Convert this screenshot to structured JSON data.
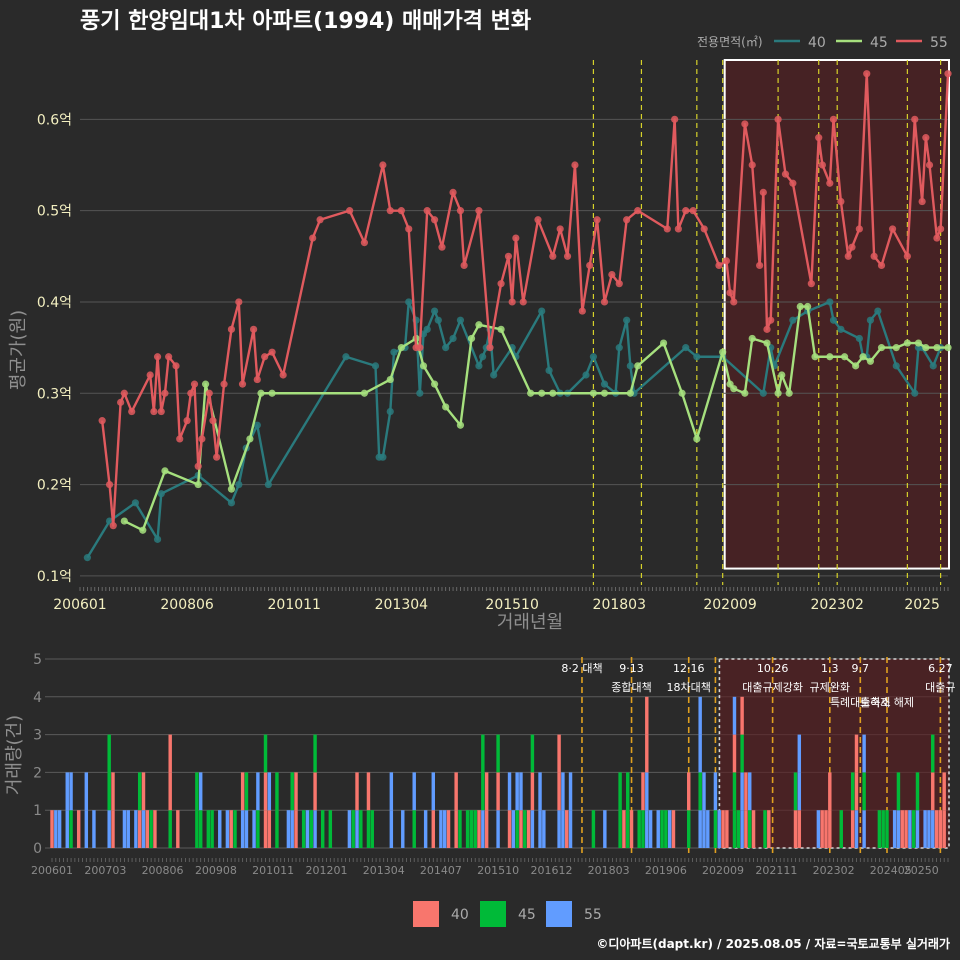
{
  "chart_data": [
    {
      "type": "line",
      "title": "풍기 한양임대1차 아파트(1994) 매매가격 변화",
      "xlabel": "거래년월",
      "ylabel": "평균가(원)",
      "x_ticks": [
        "200601",
        "200806",
        "201011",
        "201304",
        "201510",
        "201803",
        "202009",
        "202302",
        "2025"
      ],
      "y_ticks": [
        "0.1억",
        "0.2억",
        "0.3억",
        "0.4억",
        "0.5억",
        "0.6억"
      ],
      "ylim": [
        0.09,
        0.665
      ],
      "xlim": [
        "2006-01",
        "2025-08"
      ],
      "grid": true,
      "legend_title": "전용면적(㎡)",
      "legend_position": "top-right",
      "series": [
        {
          "name": "40",
          "color": "#2a7a7d",
          "x": [
            "2006-03",
            "2006-09",
            "2007-04",
            "2007-10",
            "2007-11",
            "2008-09",
            "2009-06",
            "2009-08",
            "2009-10",
            "2010-01",
            "2010-04",
            "2012-01",
            "2012-09",
            "2012-10",
            "2012-11",
            "2013-01",
            "2013-02",
            "2013-05",
            "2013-06",
            "2013-08",
            "2013-09",
            "2013-10",
            "2013-11",
            "2014-01",
            "2014-02",
            "2014-04",
            "2014-06",
            "2014-08",
            "2015-01",
            "2015-02",
            "2015-03",
            "2015-04",
            "2015-05",
            "2015-10",
            "2015-11",
            "2016-06",
            "2016-08",
            "2016-11",
            "2017-01",
            "2017-06",
            "2017-08",
            "2017-11",
            "2018-02",
            "2018-03",
            "2018-05",
            "2018-06",
            "2018-07",
            "2019-09",
            "2019-12",
            "2020-07",
            "2021-06",
            "2021-08",
            "2021-09",
            "2022-02",
            "2022-06",
            "2022-12",
            "2023-01",
            "2023-03",
            "2023-08",
            "2023-09",
            "2023-10",
            "2023-11",
            "2024-01",
            "2024-06",
            "2024-11",
            "2024-12",
            "2025-01",
            "2025-04",
            "2025-06"
          ],
          "y": [
            0.12,
            0.16,
            0.18,
            0.14,
            0.19,
            0.21,
            0.18,
            0.2,
            0.24,
            0.265,
            0.2,
            0.34,
            0.33,
            0.23,
            0.23,
            0.28,
            0.345,
            0.35,
            0.4,
            0.38,
            0.3,
            0.365,
            0.37,
            0.39,
            0.38,
            0.35,
            0.36,
            0.38,
            0.33,
            0.34,
            0.35,
            0.37,
            0.32,
            0.35,
            0.34,
            0.39,
            0.325,
            0.3,
            0.3,
            0.32,
            0.34,
            0.31,
            0.3,
            0.35,
            0.38,
            0.33,
            0.3,
            0.35,
            0.34,
            0.34,
            0.3,
            0.35,
            0.33,
            0.38,
            0.39,
            0.4,
            0.38,
            0.37,
            0.36,
            0.34,
            0.34,
            0.38,
            0.39,
            0.33,
            0.3,
            0.35,
            0.35,
            0.33,
            0.35
          ]
        },
        {
          "name": "45",
          "color": "#a6e07e",
          "x": [
            "2007-01",
            "2007-06",
            "2007-12",
            "2008-09",
            "2008-11",
            "2009-06",
            "2009-11",
            "2010-02",
            "2010-05",
            "2012-06",
            "2013-01",
            "2013-04",
            "2013-08",
            "2013-10",
            "2014-01",
            "2014-04",
            "2014-08",
            "2014-11",
            "2015-01",
            "2015-07",
            "2016-03",
            "2016-06",
            "2016-09",
            "2017-08",
            "2017-11",
            "2018-06",
            "2018-08",
            "2019-03",
            "2019-08",
            "2019-12",
            "2020-07",
            "2020-09",
            "2020-10",
            "2021-01",
            "2021-03",
            "2021-07",
            "2021-10",
            "2021-11",
            "2022-01",
            "2022-04",
            "2022-06",
            "2022-08",
            "2022-12",
            "2023-04",
            "2023-07",
            "2023-09",
            "2023-11",
            "2024-02",
            "2024-06",
            "2024-09",
            "2024-12",
            "2025-02",
            "2025-05",
            "2025-08"
          ],
          "y": [
            0.16,
            0.15,
            0.215,
            0.2,
            0.31,
            0.195,
            0.25,
            0.3,
            0.3,
            0.3,
            0.315,
            0.35,
            0.36,
            0.33,
            0.31,
            0.285,
            0.265,
            0.36,
            0.375,
            0.37,
            0.3,
            0.3,
            0.3,
            0.3,
            0.3,
            0.3,
            0.33,
            0.355,
            0.3,
            0.25,
            0.345,
            0.31,
            0.305,
            0.3,
            0.36,
            0.355,
            0.3,
            0.32,
            0.3,
            0.395,
            0.395,
            0.34,
            0.34,
            0.34,
            0.33,
            0.34,
            0.335,
            0.35,
            0.35,
            0.355,
            0.355,
            0.35,
            0.35,
            0.35
          ]
        },
        {
          "name": "55",
          "color": "#e05a5e",
          "x": [
            "2006-07",
            "2006-09",
            "2006-10",
            "2006-12",
            "2007-01",
            "2007-03",
            "2007-08",
            "2007-09",
            "2007-10",
            "2007-11",
            "2007-12",
            "2008-01",
            "2008-03",
            "2008-04",
            "2008-06",
            "2008-07",
            "2008-08",
            "2008-09",
            "2008-10",
            "2008-12",
            "2009-01",
            "2009-02",
            "2009-04",
            "2009-06",
            "2009-08",
            "2009-09",
            "2009-12",
            "2010-01",
            "2010-03",
            "2010-05",
            "2010-08",
            "2011-04",
            "2011-06",
            "2012-02",
            "2012-06",
            "2012-11",
            "2013-01",
            "2013-04",
            "2013-06",
            "2013-08",
            "2013-09",
            "2013-11",
            "2014-01",
            "2014-03",
            "2014-06",
            "2014-08",
            "2014-09",
            "2015-01",
            "2015-04",
            "2015-07",
            "2015-09",
            "2015-10",
            "2015-11",
            "2016-01",
            "2016-05",
            "2016-09",
            "2016-11",
            "2017-01",
            "2017-03",
            "2017-05",
            "2017-07",
            "2017-09",
            "2017-11",
            "2018-01",
            "2018-03",
            "2018-05",
            "2018-08",
            "2019-04",
            "2019-06",
            "2019-07",
            "2019-09",
            "2019-11",
            "2020-02",
            "2020-06",
            "2020-08",
            "2020-09",
            "2020-10",
            "2021-01",
            "2021-03",
            "2021-05",
            "2021-06",
            "2021-07",
            "2021-08",
            "2021-10",
            "2021-12",
            "2022-02",
            "2022-07",
            "2022-09",
            "2022-10",
            "2022-12",
            "2023-01",
            "2023-03",
            "2023-05",
            "2023-06",
            "2023-08",
            "2023-10",
            "2023-12",
            "2024-02",
            "2024-05",
            "2024-09",
            "2024-11",
            "2025-01",
            "2025-02",
            "2025-03",
            "2025-05",
            "2025-06",
            "2025-08"
          ],
          "y": [
            0.27,
            0.2,
            0.155,
            0.29,
            0.3,
            0.28,
            0.32,
            0.28,
            0.34,
            0.28,
            0.3,
            0.34,
            0.33,
            0.25,
            0.27,
            0.3,
            0.31,
            0.22,
            0.25,
            0.3,
            0.27,
            0.23,
            0.31,
            0.37,
            0.4,
            0.31,
            0.37,
            0.315,
            0.34,
            0.345,
            0.32,
            0.47,
            0.49,
            0.5,
            0.465,
            0.55,
            0.5,
            0.5,
            0.48,
            0.35,
            0.35,
            0.5,
            0.49,
            0.46,
            0.52,
            0.5,
            0.44,
            0.5,
            0.35,
            0.42,
            0.45,
            0.4,
            0.47,
            0.4,
            0.49,
            0.45,
            0.48,
            0.45,
            0.55,
            0.39,
            0.44,
            0.49,
            0.4,
            0.43,
            0.42,
            0.49,
            0.5,
            0.48,
            0.6,
            0.48,
            0.5,
            0.5,
            0.48,
            0.44,
            0.445,
            0.41,
            0.4,
            0.595,
            0.55,
            0.44,
            0.52,
            0.37,
            0.38,
            0.6,
            0.54,
            0.53,
            0.42,
            0.58,
            0.55,
            0.53,
            0.6,
            0.51,
            0.45,
            0.46,
            0.48,
            0.65,
            0.45,
            0.44,
            0.48,
            0.45,
            0.6,
            0.51,
            0.58,
            0.55,
            0.47,
            0.48,
            0.65
          ]
        }
      ],
      "policy_lines": [
        "2017-08",
        "2018-09",
        "2019-12",
        "2020-07",
        "2021-10",
        "2022-09",
        "2023-02",
        "2024-09",
        "2025-06"
      ],
      "highlight_range": [
        "2020-07",
        "2025-08"
      ]
    },
    {
      "type": "bar",
      "ylabel": "거래량(건)",
      "x_ticks": [
        "200601",
        "200703",
        "200806",
        "200908",
        "201011",
        "201201",
        "201304",
        "201407",
        "201510",
        "201612",
        "201803",
        "201906",
        "202009",
        "202111",
        "202302",
        "202405",
        "20250"
      ],
      "y_ticks": [
        "0",
        "1",
        "2",
        "3",
        "4",
        "5"
      ],
      "ylim": [
        0,
        5
      ],
      "legend_position": "bottom",
      "series": [
        {
          "name": "40",
          "color": "#f8766d"
        },
        {
          "name": "45",
          "color": "#00ba38"
        },
        {
          "name": "55",
          "color": "#619cff"
        }
      ],
      "policy_events": [
        {
          "date": "2017-08",
          "label": "8·2 대책"
        },
        {
          "date": "2018-09",
          "label": "9·13",
          "label2": "종합대책"
        },
        {
          "date": "2019-12",
          "label": "12·16",
          "label2": "18차대책"
        },
        {
          "date": "2020-07",
          "label": ""
        },
        {
          "date": "2021-10",
          "label": "10.26",
          "label2": "대출규제강화"
        },
        {
          "date": "2023-01",
          "label": "1.3",
          "label2": "규제완화"
        },
        {
          "date": "2023-09",
          "label": "9.7",
          "label2": "특례대출축소"
        },
        {
          "date": "2024-04",
          "label": "",
          "label2": "토허제 해제"
        },
        {
          "date": "2025-06",
          "label": "6.27",
          "label2": "대출규"
        }
      ],
      "highlight_range": [
        "2020-07",
        "2025-08"
      ]
    }
  ],
  "credit": "©디아파트(dapt.kr) / 2025.08.05 / 자료=국토교통부 실거래가"
}
